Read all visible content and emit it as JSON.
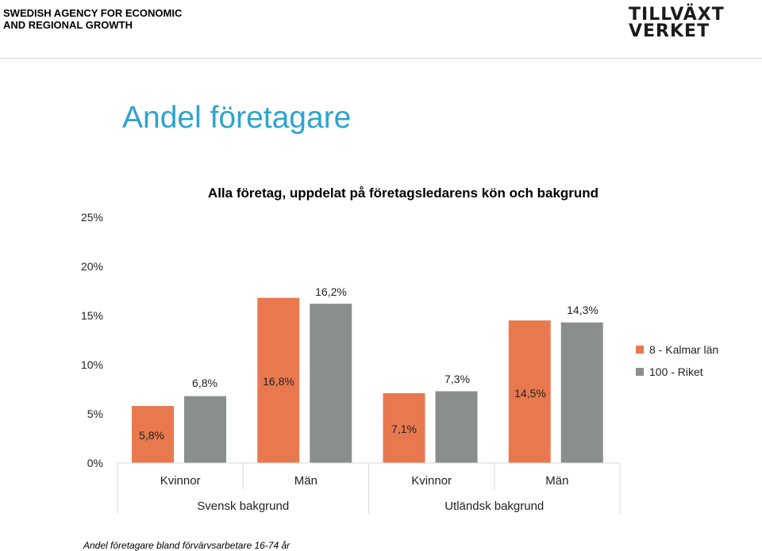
{
  "header": {
    "agency_line1": "SWEDISH AGENCY FOR ECONOMIC",
    "agency_line2": "AND REGIONAL GROWTH",
    "logo_line1": "TILLVÄXT",
    "logo_line2": "VERKET"
  },
  "page_title": "Andel företagare",
  "footnote": "Andel företagare bland förvärvsarbetare 16-74 år",
  "colors": {
    "kalmar": "#e8794e",
    "riket": "#8a8f8d",
    "axis": "#d9d9d9"
  },
  "chart_data": {
    "type": "bar",
    "title": "Alla företag, uppdelat på företagsledarens kön  och bakgrund",
    "categories": [
      "Kvinnor",
      "Män",
      "Kvinnor",
      "Män"
    ],
    "groups": [
      {
        "label": "Svensk bakgrund",
        "categories": [
          0,
          1
        ]
      },
      {
        "label": "Utländsk bakgrund",
        "categories": [
          2,
          3
        ]
      }
    ],
    "series": [
      {
        "name": "8 - Kalmar län",
        "values": [
          5.8,
          16.8,
          7.1,
          14.5
        ],
        "labels": [
          "5,8%",
          "16,8%",
          "7,1%",
          "14,5%"
        ]
      },
      {
        "name": "100 - Riket",
        "values": [
          6.8,
          16.2,
          7.3,
          14.3
        ],
        "labels": [
          "6,8%",
          "16,2%",
          "7,3%",
          "14,3%"
        ]
      }
    ],
    "yticks": [
      "0%",
      "5%",
      "10%",
      "15%",
      "20%",
      "25%"
    ],
    "ylim": [
      0,
      25
    ],
    "grid": false,
    "legend": "right"
  }
}
